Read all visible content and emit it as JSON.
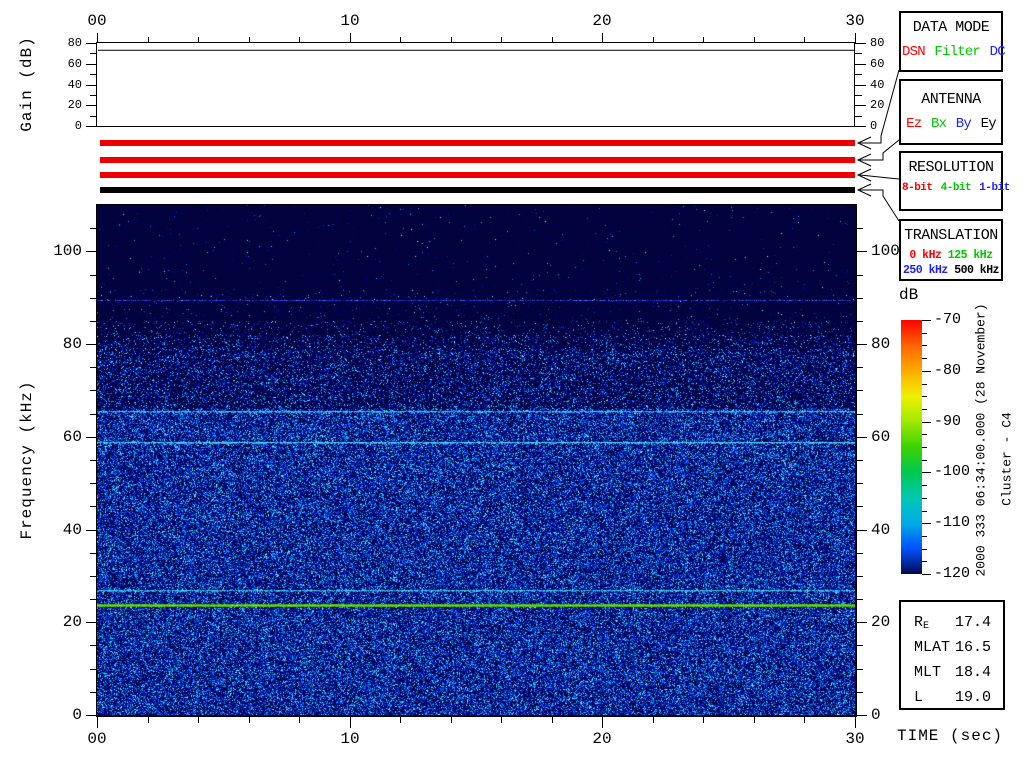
{
  "figure_bg": "#FFFFFF",
  "gain_plot": {
    "ylabel": "Gain (dB)",
    "ytick_labels": [
      "0",
      "20",
      "40",
      "60",
      "80"
    ],
    "ytick_values": [
      0,
      20,
      40,
      60,
      80
    ],
    "minor_tick_values": [
      10,
      30,
      50,
      70
    ],
    "trace_dB": 73
  },
  "time_axis": {
    "xlabel": "TIME (sec)",
    "top_labels": [
      "00",
      "10",
      "20",
      "30"
    ],
    "bottom_labels": [
      "00",
      "10",
      "20",
      "30"
    ],
    "major_tick_sec": [
      0,
      10,
      20,
      30
    ],
    "minor_step_sec": 2,
    "range_sec": [
      0,
      30
    ]
  },
  "spectrogram_axis": {
    "ylabel": "Frequency (kHz)",
    "ytick_labels": [
      "0",
      "20",
      "40",
      "60",
      "80",
      "100"
    ],
    "ytick_values": [
      0,
      20,
      40,
      60,
      80,
      100
    ],
    "minor_step_kHz": 5,
    "range_kHz": [
      0,
      110
    ]
  },
  "colorbar": {
    "title": "dB",
    "tick_labels": [
      "-70",
      "-80",
      "-90",
      "-100",
      "-110",
      "-120"
    ],
    "tick_values": [
      -70,
      -80,
      -90,
      -100,
      -110,
      -120
    ],
    "minor_step_dB": 2.5,
    "gradient": [
      "#FF0000",
      "#FF6400",
      "#FFAA00",
      "#F0F000",
      "#A0E800",
      "#3CD200",
      "#00C850",
      "#00C8B4",
      "#00AAE6",
      "#0050FF",
      "#000A50"
    ]
  },
  "status_bars": [
    {
      "name": "data-mode-bar",
      "color": "#EE0000",
      "y": 140
    },
    {
      "name": "antenna-bar",
      "color": "#EE0000",
      "y": 157
    },
    {
      "name": "resolution-bar",
      "color": "#EE0000",
      "y": 172
    },
    {
      "name": "translation-bar",
      "color": "#000000",
      "y": 187
    }
  ],
  "side_panels": {
    "data_mode": {
      "title": "DATA MODE",
      "values": [
        {
          "text": "DSN",
          "color": "#FF0000"
        },
        {
          "text": "Filter",
          "color": "#00C800"
        },
        {
          "text": "DC",
          "color": "#1E1EFF"
        }
      ]
    },
    "antenna": {
      "title": "ANTENNA",
      "values": [
        {
          "text": "Ez",
          "color": "#FF0000"
        },
        {
          "text": "Bx",
          "color": "#00C800"
        },
        {
          "text": "By",
          "color": "#1E1EFF"
        },
        {
          "text": "Ey",
          "color": "#000000"
        }
      ]
    },
    "resolution": {
      "title": "RESOLUTION",
      "values": [
        {
          "text": "8-bit",
          "color": "#FF0000"
        },
        {
          "text": "4-bit",
          "color": "#00C800"
        },
        {
          "text": "1-bit",
          "color": "#1E1EFF"
        }
      ]
    },
    "translation": {
      "title": "TRANSLATION",
      "rows": [
        [
          {
            "text": "0 kHz",
            "color": "#FF0000"
          },
          {
            "text": "125 kHz",
            "color": "#00C800"
          }
        ],
        [
          {
            "text": "250 kHz",
            "color": "#1E1EFF"
          },
          {
            "text": "500 kHz",
            "color": "#000000"
          }
        ]
      ]
    }
  },
  "ephemeris": {
    "rows": [
      {
        "label": "R",
        "sub": "E",
        "value": "17.4"
      },
      {
        "label": "MLAT",
        "sub": "",
        "value": "16.5"
      },
      {
        "label": "MLT",
        "sub": "",
        "value": "18.4"
      },
      {
        "label": "L",
        "sub": "",
        "value": "19.0"
      }
    ]
  },
  "rotated_captions": {
    "timestamp": "2000 333 06:34:00.000 (28 November)",
    "spacecraft": "Cluster - C4"
  },
  "chart_data": [
    {
      "type": "line",
      "title": "Receiver gain",
      "xlabel": "TIME (sec)",
      "ylabel": "Gain (dB)",
      "xlim": [
        0,
        30
      ],
      "ylim": [
        0,
        80
      ],
      "x": [
        0,
        30
      ],
      "series": [
        {
          "name": "gain",
          "values": [
            73,
            73
          ]
        }
      ],
      "grid": false
    },
    {
      "type": "heatmap",
      "title": "Cluster C4 WBD wideband spectrogram",
      "xlabel": "TIME (sec)",
      "ylabel": "Frequency (kHz)",
      "xlim": [
        0,
        30
      ],
      "ylim": [
        0,
        110
      ],
      "colorbar_label": "dB",
      "colorbar_range": [
        -120,
        -70
      ],
      "colorbar_ticks": [
        -70,
        -80,
        -90,
        -100,
        -110,
        -120
      ],
      "background_level_dB": -120,
      "broadband_noise": {
        "freq_range_kHz": [
          0,
          85
        ],
        "typical_level_dB": [
          -118,
          -106
        ],
        "density": "dense below 66 kHz, fading out 79-85 kHz"
      },
      "spectral_lines": [
        {
          "freq_kHz": 89.5,
          "level_dB": -113,
          "appearance": "faint blue intermittent line"
        },
        {
          "freq_kHz": 65.3,
          "level_dB": -107,
          "appearance": "cyan line"
        },
        {
          "freq_kHz": 58.6,
          "level_dB": -105,
          "appearance": "cyan line"
        },
        {
          "freq_kHz": 26.8,
          "level_dB": -106,
          "appearance": "cyan line"
        },
        {
          "freq_kHz": 23.6,
          "level_dB": -96,
          "appearance": "bright green line"
        }
      ],
      "start_time": "2000 333 06:34:00.000 (28 November)",
      "spacecraft": "Cluster - C4",
      "legend_position": "right colorbar"
    }
  ]
}
